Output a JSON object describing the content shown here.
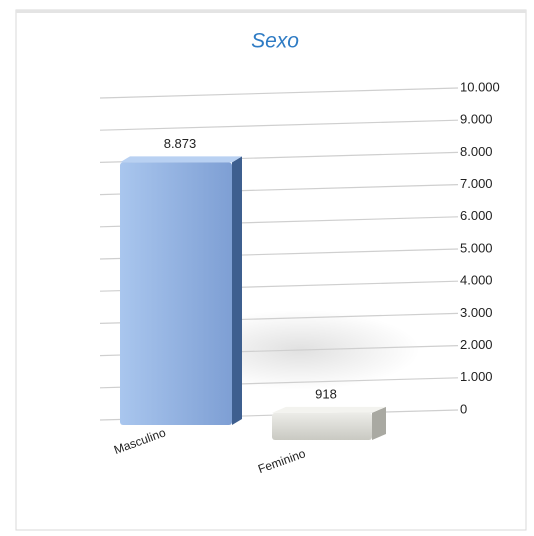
{
  "chart_data": {
    "type": "bar3d",
    "title": "Sexo",
    "categories": [
      "Masculino",
      "Feminino"
    ],
    "values": [
      8873,
      918
    ],
    "value_labels": [
      "8.873",
      "918"
    ],
    "colors": [
      "#8fb2e3",
      "#d9d9d3"
    ],
    "ylim": [
      0,
      10000
    ],
    "yticks": [
      0,
      {
        "value": 1000,
        "label": "1.000"
      },
      {
        "value": 2000,
        "label": "2.000"
      },
      {
        "value": 3000,
        "label": "3.000"
      },
      {
        "value": 4000,
        "label": "4.000"
      },
      {
        "value": 5000,
        "label": "5.000"
      },
      {
        "value": 6000,
        "label": "6.000"
      },
      {
        "value": 7000,
        "label": "7.000"
      },
      {
        "value": 8000,
        "label": "8.000"
      },
      {
        "value": 9000,
        "label": "9.000"
      },
      {
        "value": 10000,
        "label": "10.000"
      }
    ],
    "grid": true
  }
}
